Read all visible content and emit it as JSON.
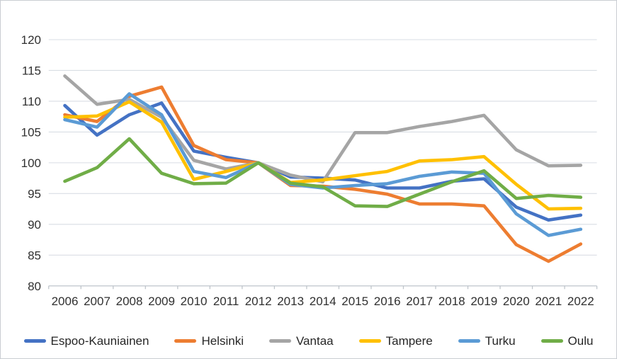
{
  "chart_data": {
    "type": "line",
    "title": "",
    "xlabel": "",
    "ylabel": "",
    "x_categories": [
      "2006",
      "2007",
      "2008",
      "2009",
      "2010",
      "2011",
      "2012",
      "2013",
      "2014",
      "2015",
      "2016",
      "2017",
      "2018",
      "2019",
      "2020",
      "2021",
      "2022"
    ],
    "y_ticks": [
      80,
      85,
      90,
      95,
      100,
      105,
      110,
      115,
      120
    ],
    "ylim": [
      80,
      120
    ],
    "grid": true,
    "legend_position": "bottom",
    "series": [
      {
        "name": "Espoo-Kauniainen",
        "color": "#4472C4",
        "values": [
          109.3,
          104.5,
          107.8,
          109.7,
          101.9,
          100.9,
          100,
          97.7,
          97.5,
          97.2,
          95.9,
          95.9,
          97.0,
          97.4,
          92.8,
          90.7,
          91.5
        ]
      },
      {
        "name": "Helsinki",
        "color": "#ED7D31",
        "values": [
          107.8,
          106.7,
          110.8,
          112.3,
          102.8,
          100.5,
          100,
          96.3,
          96.2,
          95.7,
          94.9,
          93.3,
          93.3,
          93.0,
          86.7,
          84.0,
          86.8
        ]
      },
      {
        "name": "Vantaa",
        "color": "#A5A5A5",
        "values": [
          114.1,
          109.5,
          110.3,
          107.4,
          100.4,
          99.0,
          100,
          98.0,
          96.9,
          104.9,
          104.9,
          105.9,
          106.7,
          107.7,
          102.1,
          99.5,
          99.6
        ]
      },
      {
        "name": "Tampere",
        "color": "#FFC000",
        "values": [
          107.4,
          107.6,
          109.9,
          106.6,
          97.3,
          98.6,
          100,
          96.8,
          97.2,
          97.9,
          98.6,
          100.3,
          100.5,
          101.0,
          96.5,
          92.5,
          92.6
        ]
      },
      {
        "name": "Turku",
        "color": "#5B9BD5",
        "values": [
          107.0,
          105.8,
          111.2,
          107.8,
          98.6,
          97.6,
          100,
          96.5,
          95.9,
          96.3,
          96.6,
          97.8,
          98.5,
          98.3,
          91.7,
          88.2,
          89.2
        ]
      },
      {
        "name": "Oulu",
        "color": "#70AD47",
        "values": [
          97.0,
          99.2,
          103.9,
          98.3,
          96.6,
          96.7,
          100,
          96.7,
          96.1,
          93.0,
          92.9,
          94.9,
          96.9,
          98.7,
          94.2,
          94.7,
          94.4
        ]
      }
    ]
  },
  "colors": {
    "background": "#FFFFFF",
    "gridline": "#D9DEE4",
    "axis_line": "#BFC5CB",
    "tick_text": "#303030",
    "legend_text": "#262626",
    "frame_border": "#C9CDD2"
  }
}
